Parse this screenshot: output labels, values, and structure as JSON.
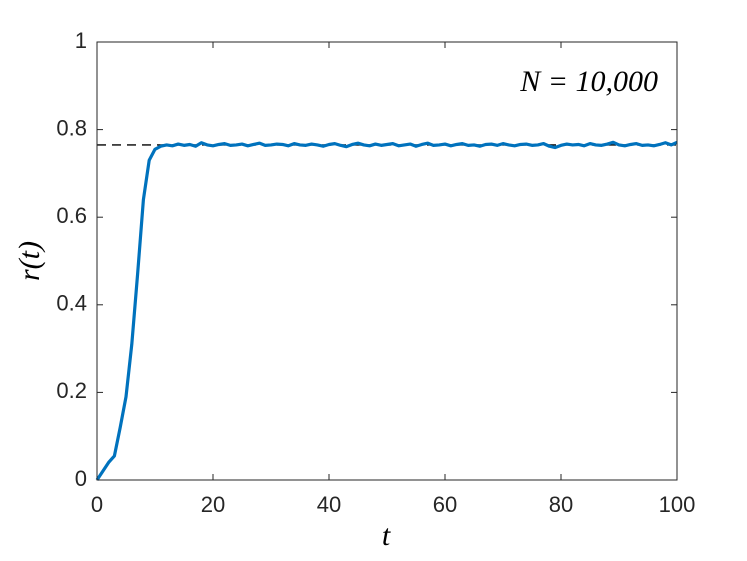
{
  "chart_data": {
    "type": "line",
    "xlabel": "t",
    "ylabel": "r(t)",
    "annotation": "N = 10,000",
    "x": [
      0,
      1,
      2,
      3,
      4,
      5,
      6,
      7,
      8,
      9,
      10,
      11,
      12,
      13,
      14,
      15,
      16,
      17,
      18,
      19,
      20,
      21,
      22,
      23,
      24,
      25,
      26,
      27,
      28,
      29,
      30,
      31,
      32,
      33,
      34,
      35,
      36,
      37,
      38,
      39,
      40,
      41,
      42,
      43,
      44,
      45,
      46,
      47,
      48,
      49,
      50,
      51,
      52,
      53,
      54,
      55,
      56,
      57,
      58,
      59,
      60,
      61,
      62,
      63,
      64,
      65,
      66,
      67,
      68,
      69,
      70,
      71,
      72,
      73,
      74,
      75,
      76,
      77,
      78,
      79,
      80,
      81,
      82,
      83,
      84,
      85,
      86,
      87,
      88,
      89,
      90,
      91,
      92,
      93,
      94,
      95,
      96,
      97,
      98,
      99,
      100
    ],
    "series": [
      {
        "color": "#0072bd",
        "values": [
          0,
          0.02,
          0.04,
          0.055,
          0.12,
          0.19,
          0.31,
          0.47,
          0.64,
          0.73,
          0.755,
          0.762,
          0.765,
          0.763,
          0.767,
          0.764,
          0.766,
          0.762,
          0.77,
          0.765,
          0.763,
          0.766,
          0.768,
          0.764,
          0.765,
          0.767,
          0.763,
          0.766,
          0.769,
          0.764,
          0.765,
          0.767,
          0.766,
          0.763,
          0.768,
          0.765,
          0.764,
          0.767,
          0.765,
          0.762,
          0.766,
          0.768,
          0.764,
          0.761,
          0.766,
          0.769,
          0.765,
          0.763,
          0.767,
          0.764,
          0.766,
          0.768,
          0.763,
          0.765,
          0.767,
          0.762,
          0.766,
          0.769,
          0.764,
          0.765,
          0.767,
          0.763,
          0.766,
          0.768,
          0.764,
          0.765,
          0.762,
          0.766,
          0.767,
          0.764,
          0.768,
          0.765,
          0.763,
          0.766,
          0.767,
          0.764,
          0.765,
          0.768,
          0.762,
          0.759,
          0.764,
          0.767,
          0.765,
          0.766,
          0.763,
          0.768,
          0.765,
          0.764,
          0.767,
          0.771,
          0.765,
          0.763,
          0.766,
          0.768,
          0.764,
          0.765,
          0.763,
          0.766,
          0.77,
          0.765,
          0.771
        ]
      }
    ],
    "reference_line": {
      "value": 0.765,
      "color": "#000000"
    },
    "xlim": [
      0,
      100
    ],
    "xticks": [
      0,
      20,
      40,
      60,
      80,
      100
    ],
    "ylim": [
      0,
      1
    ],
    "yticks": [
      0,
      0.2,
      0.4,
      0.6,
      0.8,
      1
    ],
    "grid": false
  }
}
